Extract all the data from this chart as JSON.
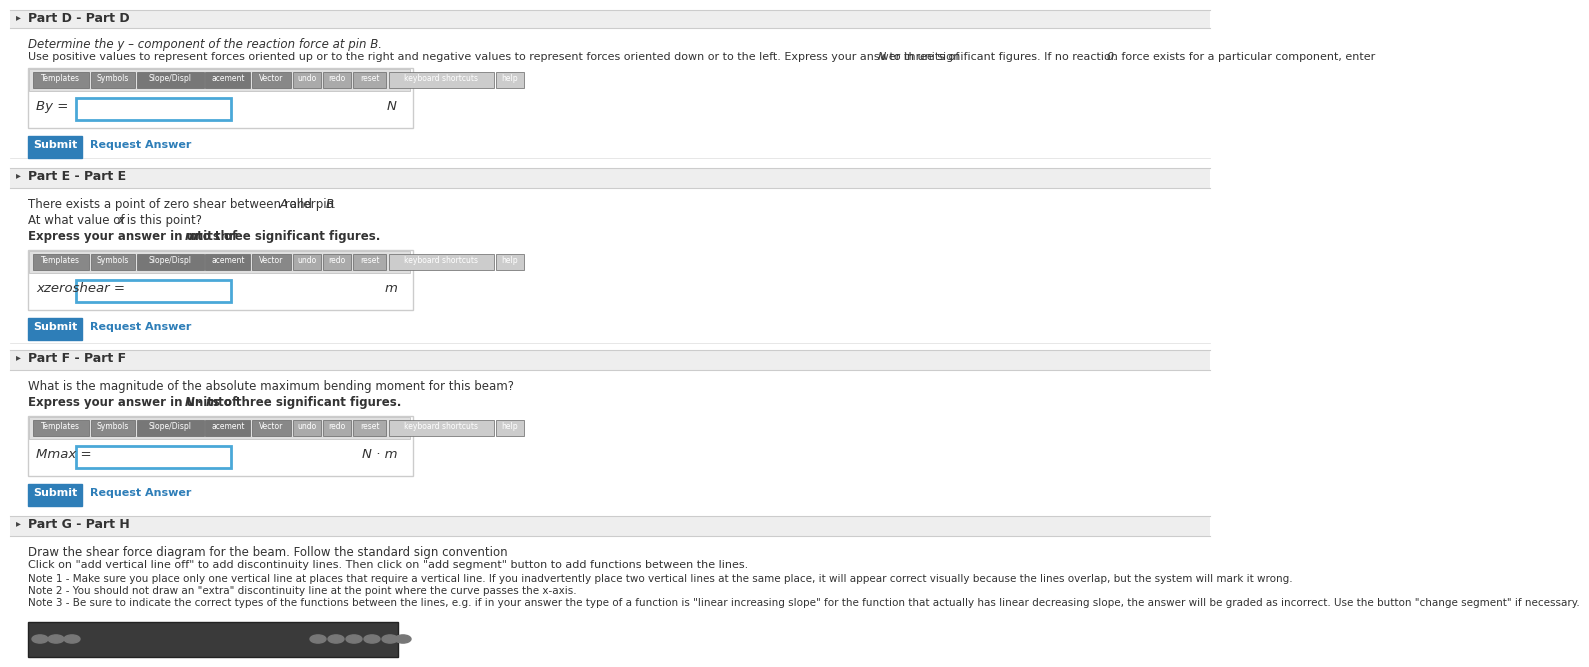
{
  "white": "#ffffff",
  "light_gray_bg": "#f5f5f5",
  "section_header_bg": "#eeeeee",
  "border_color": "#cccccc",
  "blue_btn": "#2e7eb8",
  "link_color": "#2e7eb8",
  "text_color": "#333333",
  "input_border": "#4aa8d8",
  "toolbar_dark": "#7a7a7a",
  "toolbar_mid": "#999999",
  "part_d_header": "Part D - Part D",
  "part_d_line1": "Determine the y – component of the reaction force at pin B.",
  "part_d_line2_a": "Use positive values to represent forces oriented up or to the right and negative values to represent forces oriented down or to the left. Express your answer in units of ",
  "part_d_line2_b": "N",
  "part_d_line2_c": " to three significant figures. If no reaction force exists for a particular component, enter ",
  "part_d_line2_d": "0",
  "part_d_line2_e": ".",
  "toolbar_labels": [
    "Templates",
    "Symbols",
    "Slope/Displ",
    "acement",
    "Vector",
    "undo",
    "redo",
    "reset",
    "keyboard shortcuts",
    "help"
  ],
  "by_label": "B",
  "by_sub": "y",
  "by_unit": "N",
  "submit_label": "Submit",
  "request_label": "Request Answer",
  "part_e_header": "Part E - Part E",
  "part_e_line1": "There exists a point of zero shear between roller ",
  "part_e_line1_a": "A",
  "part_e_line1_b": " and pin ",
  "part_e_line1_c": "B",
  "part_e_line1_d": ".",
  "part_e_line2": "At what value of ",
  "part_e_line2_a": "x",
  "part_e_line2_b": " is this point?",
  "part_e_line3": "Express your answer in units of ",
  "part_e_line3_a": "m",
  "part_e_line3_b": " to three significant figures.",
  "xzero_label": "xzeroshear",
  "xzero_unit": "m",
  "part_f_header": "Part F - Part F",
  "part_f_line1": "What is the magnitude of the absolute maximum bending moment for this beam?",
  "part_f_line2": "Express your answer in units of ",
  "part_f_line2_a": "N",
  "part_f_line2_b": " · ",
  "part_f_line2_c": "m",
  "part_f_line2_d": " to three significant figures.",
  "mmax_label": "Mmax=",
  "mmax_unit": "N · m",
  "part_g_header": "Part G - Part H",
  "part_g_line1": "Draw the shear force diagram for the beam. Follow the standard sign convention",
  "part_g_line2": "Click on \"add vertical line off\" to add discontinuity lines. Then click on \"add segment\" button to add functions between the lines.",
  "part_g_note1": "Note 1 - Make sure you place only one vertical line at places that require a vertical line. If you inadvertently place two vertical lines at the same place, it will appear correct visually because the lines overlap, but the system will mark it wrong.",
  "part_g_note2": "Note 2 - You should not draw an \"extra\" discontinuity line at the point where the curve passes the x-axis.",
  "part_g_note3": "Note 3 - Be sure to indicate the correct types of the functions between the lines, e.g. if in your answer the type of a function is \"linear increasing slope\" for the function that actually has linear decreasing slope, the answer will be graded as incorrect. Use the button \"change segment\" if necessary."
}
